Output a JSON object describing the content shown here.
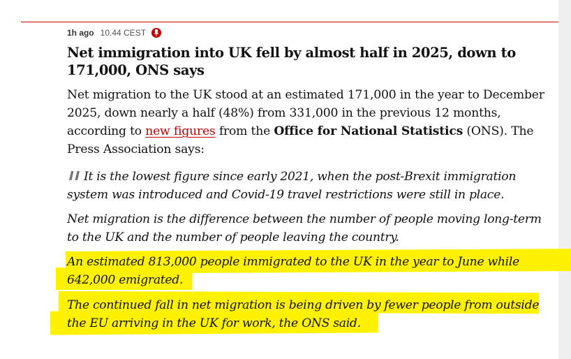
{
  "post": {
    "ago": "1h ago",
    "time": "10.44 CEST",
    "title": "Net immigration into UK fell by almost half in 2025, down to 171,000, ONS says",
    "intro": {
      "part1": "Net migration to the UK stood at an estimated 171,000 in the year to December 2025, down nearly a half (48%) from 331,000 in the previous 12 months, according to ",
      "link": "new figures",
      "part2": " from the ",
      "bold": "Office for National Statistics",
      "part3": " (ONS). The Press Association says:"
    },
    "quotes": [
      "It is the lowest figure since early 2021, when the post-Brexit immigration system was introduced and Covid-19 travel restrictions were still in place.",
      "Net migration is the difference between the number of people moving long-term to the UK and the number of people leaving the country.",
      "An estimated 813,000 people immigrated to the UK in the year to June while 642,000 emigrated.",
      "The continued fall in net migration is being driven by fewer people from outside the EU arriving in the UK for work, the ONS said."
    ]
  },
  "colors": {
    "accent": "#c70000",
    "highlight": "#fff200"
  },
  "icons": {
    "pin": "pinned-icon",
    "quote": "quote-mark-icon"
  }
}
